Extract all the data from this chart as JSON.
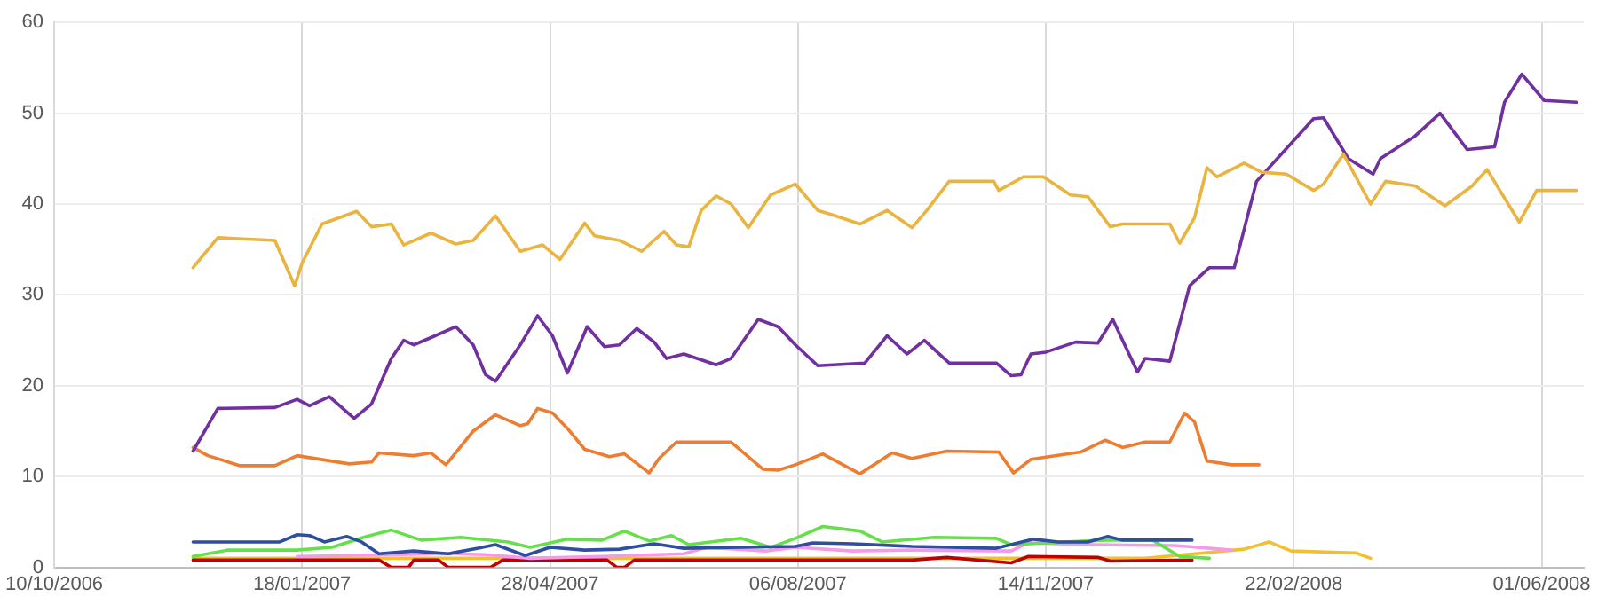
{
  "chart_data": {
    "type": "line",
    "xlim": [
      "2006-10-10",
      "2008-06-18"
    ],
    "xticks": [
      {
        "value": "2006-10-10",
        "label": "10/10/2006"
      },
      {
        "value": "2007-01-18",
        "label": "18/01/2007"
      },
      {
        "value": "2007-04-28",
        "label": "28/04/2007"
      },
      {
        "value": "2007-08-06",
        "label": "06/08/2007"
      },
      {
        "value": "2007-11-14",
        "label": "14/11/2007"
      },
      {
        "value": "2008-02-22",
        "label": "22/02/2008"
      },
      {
        "value": "2008-06-01",
        "label": "01/06/2008"
      }
    ],
    "ylim": [
      0,
      60
    ],
    "yticks": [
      0,
      10,
      20,
      30,
      40,
      50,
      60
    ],
    "grid": true,
    "marker": "none",
    "line_style": "solid",
    "series": [
      {
        "color": "#e9b440",
        "x": [
          "2006-12-05",
          "2006-12-15",
          "2007-01-07",
          "2007-01-15",
          "2007-01-18",
          "2007-01-26",
          "2007-02-09",
          "2007-02-15",
          "2007-02-23",
          "2007-02-28",
          "2007-03-11",
          "2007-03-21",
          "2007-03-28",
          "2007-04-06",
          "2007-04-16",
          "2007-04-25",
          "2007-05-02",
          "2007-05-12",
          "2007-05-16",
          "2007-05-26",
          "2007-06-04",
          "2007-06-13",
          "2007-06-18",
          "2007-06-23",
          "2007-06-28",
          "2007-07-04",
          "2007-07-10",
          "2007-07-17",
          "2007-07-26",
          "2007-08-05",
          "2007-08-14",
          "2007-08-20",
          "2007-08-31",
          "2007-09-11",
          "2007-09-21",
          "2007-09-27",
          "2007-10-06",
          "2007-10-24",
          "2007-10-26",
          "2007-11-05",
          "2007-11-13",
          "2007-11-24",
          "2007-12-01",
          "2007-12-10",
          "2007-12-15",
          "2008-01-03",
          "2008-01-07",
          "2008-01-13",
          "2008-01-18",
          "2008-01-22",
          "2008-02-02",
          "2008-02-09",
          "2008-02-19",
          "2008-03-01",
          "2008-03-05",
          "2008-03-13",
          "2008-03-24",
          "2008-03-30",
          "2008-04-11",
          "2008-04-23",
          "2008-05-04",
          "2008-05-10",
          "2008-05-23",
          "2008-05-30",
          "2008-06-15"
        ],
        "values": [
          33,
          36.3,
          36,
          31,
          33.5,
          37.8,
          39.2,
          37.5,
          37.8,
          35.5,
          36.8,
          35.6,
          36,
          38.7,
          34.8,
          35.5,
          33.9,
          37.9,
          36.5,
          36,
          34.8,
          37,
          35.5,
          35.3,
          39.3,
          40.9,
          40,
          37.4,
          41,
          42.2,
          39.3,
          38.8,
          37.8,
          39.3,
          37.4,
          39.3,
          42.5,
          42.5,
          41.5,
          43,
          43,
          41,
          40.8,
          37.5,
          37.8,
          37.8,
          35.7,
          38.5,
          44,
          43,
          44.5,
          43.5,
          43.3,
          41.5,
          42.2,
          45.5,
          40,
          42.5,
          42,
          39.8,
          42,
          43.8,
          38,
          41.5,
          41.5
        ]
      },
      {
        "color": "#7030a0",
        "x": [
          "2006-12-05",
          "2006-12-15",
          "2007-01-07",
          "2007-01-16",
          "2007-01-21",
          "2007-01-29",
          "2007-02-08",
          "2007-02-15",
          "2007-02-23",
          "2007-02-28",
          "2007-03-04",
          "2007-03-11",
          "2007-03-21",
          "2007-03-28",
          "2007-04-02",
          "2007-04-06",
          "2007-04-16",
          "2007-04-23",
          "2007-04-29",
          "2007-05-05",
          "2007-05-13",
          "2007-05-20",
          "2007-05-26",
          "2007-06-02",
          "2007-06-09",
          "2007-06-14",
          "2007-06-21",
          "2007-07-04",
          "2007-07-10",
          "2007-07-21",
          "2007-07-29",
          "2007-08-05",
          "2007-08-14",
          "2007-09-02",
          "2007-09-11",
          "2007-09-19",
          "2007-09-26",
          "2007-10-06",
          "2007-10-25",
          "2007-10-31",
          "2007-11-04",
          "2007-11-08",
          "2007-11-14",
          "2007-11-26",
          "2007-12-05",
          "2007-12-11",
          "2007-12-21",
          "2007-12-24",
          "2008-01-03",
          "2008-01-11",
          "2008-01-19",
          "2008-01-29",
          "2008-02-07",
          "2008-02-17",
          "2008-03-01",
          "2008-03-05",
          "2008-03-15",
          "2008-03-25",
          "2008-03-28",
          "2008-04-11",
          "2008-04-21",
          "2008-05-02",
          "2008-05-13",
          "2008-05-17",
          "2008-05-24",
          "2008-06-02",
          "2008-06-15"
        ],
        "values": [
          12.8,
          17.5,
          17.6,
          18.5,
          17.8,
          18.8,
          16.4,
          18,
          23,
          25,
          24.5,
          25.3,
          26.5,
          24.5,
          21.2,
          20.5,
          24.5,
          27.7,
          25.5,
          21.4,
          26.5,
          24.3,
          24.5,
          26.3,
          24.8,
          23,
          23.5,
          22.3,
          23,
          27.3,
          26.5,
          24.5,
          22.2,
          22.5,
          25.5,
          23.5,
          25,
          22.5,
          22.5,
          21.1,
          21.2,
          23.5,
          23.7,
          24.8,
          24.7,
          27.3,
          21.5,
          23,
          22.7,
          31,
          33,
          33,
          42.5,
          45.5,
          49.4,
          49.5,
          45,
          43.3,
          45,
          47.5,
          50,
          46,
          46.3,
          51.2,
          54.3,
          51.4,
          51.2
        ]
      },
      {
        "color": "#ed7d31",
        "x": [
          "2006-12-05",
          "2006-12-11",
          "2006-12-24",
          "2007-01-07",
          "2007-01-16",
          "2007-02-06",
          "2007-02-15",
          "2007-02-18",
          "2007-03-04",
          "2007-03-11",
          "2007-03-17",
          "2007-03-28",
          "2007-04-06",
          "2007-04-16",
          "2007-04-19",
          "2007-04-23",
          "2007-04-29",
          "2007-05-05",
          "2007-05-12",
          "2007-05-22",
          "2007-05-28",
          "2007-06-07",
          "2007-06-11",
          "2007-06-18",
          "2007-07-10",
          "2007-07-23",
          "2007-07-29",
          "2007-08-05",
          "2007-08-16",
          "2007-08-31",
          "2007-09-13",
          "2007-09-21",
          "2007-10-05",
          "2007-10-26",
          "2007-11-01",
          "2007-11-08",
          "2007-11-28",
          "2007-12-08",
          "2007-12-15",
          "2007-12-24",
          "2008-01-03",
          "2008-01-09",
          "2008-01-13",
          "2008-01-18",
          "2008-01-28",
          "2008-02-08"
        ],
        "values": [
          13.2,
          12.3,
          11.2,
          11.2,
          12.3,
          11.4,
          11.6,
          12.6,
          12.3,
          12.6,
          11.3,
          15,
          16.8,
          15.6,
          15.8,
          17.5,
          17,
          15.3,
          13,
          12.2,
          12.5,
          10.4,
          12,
          13.8,
          13.8,
          10.8,
          10.7,
          11.3,
          12.5,
          10.3,
          12.6,
          12,
          12.8,
          12.7,
          10.4,
          11.9,
          12.7,
          14,
          13.2,
          13.8,
          13.8,
          17,
          16,
          11.7,
          11.3,
          11.3
        ]
      },
      {
        "color": "#2f4ea0",
        "x": [
          "2006-12-05",
          "2007-01-09",
          "2007-01-16",
          "2007-01-21",
          "2007-01-27",
          "2007-02-05",
          "2007-02-11",
          "2007-02-18",
          "2007-03-04",
          "2007-03-18",
          "2007-03-30",
          "2007-04-06",
          "2007-04-18",
          "2007-04-28",
          "2007-05-12",
          "2007-05-26",
          "2007-06-09",
          "2007-06-21",
          "2007-07-14",
          "2007-08-05",
          "2007-08-12",
          "2007-08-28",
          "2007-09-21",
          "2007-10-25",
          "2007-11-09",
          "2007-11-19",
          "2007-12-01",
          "2007-12-09",
          "2007-12-15",
          "2008-01-12"
        ],
        "values": [
          2.8,
          2.8,
          3.6,
          3.5,
          2.8,
          3.4,
          2.8,
          1.5,
          1.8,
          1.5,
          2.1,
          2.5,
          1.3,
          2.2,
          1.9,
          2,
          2.6,
          2.1,
          2.2,
          2.3,
          2.7,
          2.6,
          2.3,
          2.1,
          3.1,
          2.8,
          2.8,
          3.4,
          3,
          3
        ]
      },
      {
        "color": "#66e04a",
        "x": [
          "2006-12-05",
          "2006-12-19",
          "2007-01-16",
          "2007-01-30",
          "2007-02-13",
          "2007-02-23",
          "2007-03-07",
          "2007-03-23",
          "2007-04-11",
          "2007-04-20",
          "2007-05-05",
          "2007-05-19",
          "2007-05-28",
          "2007-06-07",
          "2007-06-16",
          "2007-06-23",
          "2007-07-14",
          "2007-07-26",
          "2007-08-05",
          "2007-08-16",
          "2007-08-31",
          "2007-09-09",
          "2007-09-30",
          "2007-10-25",
          "2007-10-31",
          "2007-12-08",
          "2007-12-27",
          "2008-01-07",
          "2008-01-19"
        ],
        "values": [
          1.2,
          1.9,
          1.9,
          2.2,
          3.4,
          4.1,
          3,
          3.3,
          2.8,
          2.2,
          3.1,
          3,
          4,
          2.9,
          3.5,
          2.5,
          3.2,
          2.2,
          3.2,
          4.5,
          4,
          2.8,
          3.3,
          3.2,
          2.5,
          3,
          3,
          1.2,
          1
        ]
      },
      {
        "color": "#f49ae8",
        "x": [
          "2007-01-16",
          "2007-03-18",
          "2007-04-02",
          "2007-04-20",
          "2007-05-19",
          "2007-06-21",
          "2007-06-30",
          "2007-07-24",
          "2007-08-05",
          "2007-08-28",
          "2007-09-21",
          "2007-10-31",
          "2007-11-07",
          "2007-12-01",
          "2008-01-05",
          "2008-01-28"
        ],
        "values": [
          1.2,
          1.5,
          1.4,
          1,
          1.2,
          1.5,
          2.2,
          1.8,
          2.2,
          1.8,
          1.9,
          1.8,
          2.7,
          2.5,
          2.4,
          1.9
        ]
      },
      {
        "color": "#c00000",
        "x": [
          "2006-12-05",
          "2007-02-18",
          "2007-02-23",
          "2007-03-02",
          "2007-03-04",
          "2007-03-14",
          "2007-03-18",
          "2007-04-04",
          "2007-04-09",
          "2007-05-21",
          "2007-05-25",
          "2007-05-28",
          "2007-06-01",
          "2007-08-05",
          "2007-09-21",
          "2007-10-05",
          "2007-10-31",
          "2007-11-07",
          "2007-12-05",
          "2007-12-10",
          "2008-01-12"
        ],
        "values": [
          0.8,
          0.8,
          0,
          0,
          0.8,
          0.8,
          0,
          0,
          0.8,
          0.8,
          0,
          0,
          0.8,
          0.8,
          0.8,
          1.1,
          0.5,
          1.2,
          1.1,
          0.7,
          0.8
        ]
      },
      {
        "color": "#f0c030",
        "x": [
          "2006-12-05",
          "2007-08-05",
          "2007-12-24",
          "2008-01-17",
          "2008-02-02",
          "2008-02-12",
          "2008-02-21",
          "2008-03-18",
          "2008-03-24"
        ],
        "values": [
          1,
          1,
          1,
          1.6,
          2,
          2.8,
          1.8,
          1.6,
          1
        ]
      }
    ]
  }
}
